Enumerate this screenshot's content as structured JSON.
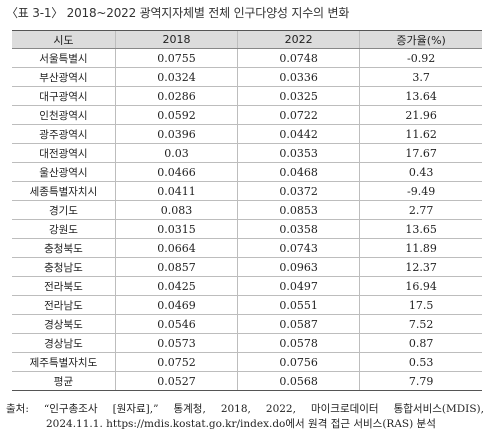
{
  "title": "〈표 3-1〉 2018~2022 광역지자체별 전체 인구다양성 지수의 변화",
  "table": {
    "headers": [
      "시도",
      "2018",
      "2022",
      "증가율(%)"
    ],
    "rows": [
      [
        "서울특별시",
        "0.0755",
        "0.0748",
        "-0.92"
      ],
      [
        "부산광역시",
        "0.0324",
        "0.0336",
        "3.7"
      ],
      [
        "대구광역시",
        "0.0286",
        "0.0325",
        "13.64"
      ],
      [
        "인천광역시",
        "0.0592",
        "0.0722",
        "21.96"
      ],
      [
        "광주광역시",
        "0.0396",
        "0.0442",
        "11.62"
      ],
      [
        "대전광역시",
        "0.03",
        "0.0353",
        "17.67"
      ],
      [
        "울산광역시",
        "0.0466",
        "0.0468",
        "0.43"
      ],
      [
        "세종특별자치시",
        "0.0411",
        "0.0372",
        "-9.49"
      ],
      [
        "경기도",
        "0.083",
        "0.0853",
        "2.77"
      ],
      [
        "강원도",
        "0.0315",
        "0.0358",
        "13.65"
      ],
      [
        "충청북도",
        "0.0664",
        "0.0743",
        "11.89"
      ],
      [
        "충청남도",
        "0.0857",
        "0.0963",
        "12.37"
      ],
      [
        "전라북도",
        "0.0425",
        "0.0497",
        "16.94"
      ],
      [
        "전라남도",
        "0.0469",
        "0.0551",
        "17.5"
      ],
      [
        "경상북도",
        "0.0546",
        "0.0587",
        "7.52"
      ],
      [
        "경상남도",
        "0.0573",
        "0.0578",
        "0.87"
      ],
      [
        "제주특별자치도",
        "0.0752",
        "0.0756",
        "0.53"
      ],
      [
        "평균",
        "0.0527",
        "0.0568",
        "7.79"
      ]
    ]
  },
  "source": {
    "label": "출처:",
    "line1_parts": [
      "“인구총조사",
      "[원자료],”",
      "통계청,",
      "2018,",
      "2022,",
      "마이크로데이터",
      "통합서비스(MDIS),"
    ],
    "line2": "2024.11.1. https://mdis.kostat.go.kr/index.do에서 원격 접근 서비스(RAS) 분석"
  }
}
